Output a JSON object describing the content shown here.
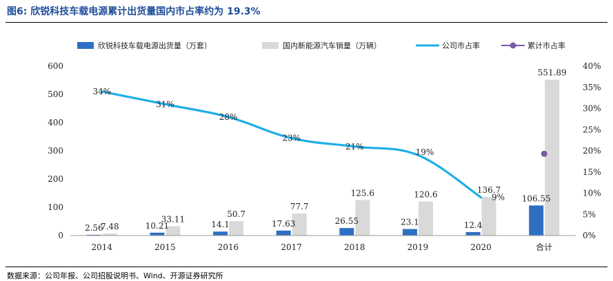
{
  "figure": {
    "title": "图6: 欣锐科技车载电源累计出货量国内市占率约为 19.3%",
    "source": "数据来源：公司年报、公司招股说明书、Wind、开源证券研究所"
  },
  "chart_data": {
    "type": "bar",
    "categories": [
      "2014",
      "2015",
      "2016",
      "2017",
      "2018",
      "2019",
      "2020",
      "合计"
    ],
    "series": [
      {
        "name": "欣锐科技车载电源出货量（万套）",
        "type": "bar",
        "axis": "left",
        "color": "#2e6fc4",
        "values": [
          2.56,
          10.21,
          14.1,
          17.63,
          26.55,
          23.1,
          12.4,
          106.55
        ],
        "labels": [
          "2.56",
          "10.21",
          "14.1",
          "17.63",
          "26.55",
          "23.1",
          "12.4",
          "106.55"
        ]
      },
      {
        "name": "国内新能源汽车销量（万辆）",
        "type": "bar",
        "axis": "left",
        "color": "#d9d9d9",
        "values": [
          7.48,
          33.11,
          50.7,
          77.7,
          125.6,
          120.6,
          136.7,
          551.89
        ],
        "labels": [
          "7.48",
          "33.11",
          "50.7",
          "77.7",
          "125.6",
          "120.6",
          "136.7",
          "551.89"
        ]
      },
      {
        "name": "公司市占率",
        "type": "line",
        "axis": "right",
        "color": "#1eaee8",
        "values": [
          34,
          31,
          28,
          23,
          21,
          19,
          9,
          null
        ],
        "labels": [
          "34%",
          "31%",
          "28%",
          "23%",
          "21%",
          "19%",
          "9%",
          ""
        ]
      },
      {
        "name": "累计市占率",
        "type": "point",
        "axis": "right",
        "color": "#7b5aa6",
        "values": [
          null,
          null,
          null,
          null,
          null,
          null,
          null,
          19.3
        ]
      }
    ],
    "y_left": {
      "min": 0,
      "max": 600,
      "ticks": [
        "0",
        "100",
        "200",
        "300",
        "400",
        "500",
        "600"
      ]
    },
    "y_right": {
      "min": 0,
      "max": 40,
      "ticks": [
        "0%",
        "5%",
        "10%",
        "15%",
        "20%",
        "25%",
        "30%",
        "35%",
        "40%"
      ]
    },
    "legend_position": "top",
    "grid": false
  }
}
